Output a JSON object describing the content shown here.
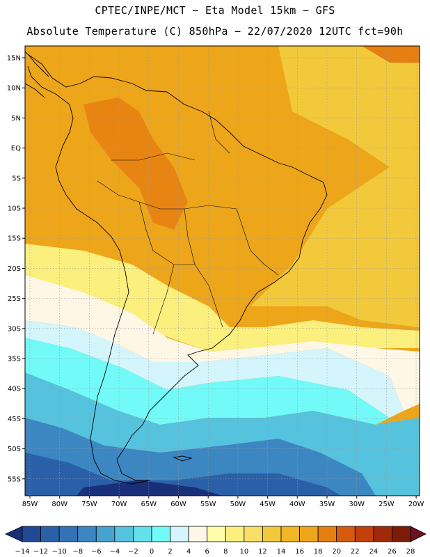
{
  "header": {
    "line1": "CPTEC/INPE/MCT −  Eta Model 15km − GFS",
    "line2": "Absolute Temperature (C) 850hPa − 22/07/2020 12UTC fct=90h"
  },
  "map": {
    "lat_labels": [
      "15N",
      "10N",
      "5N",
      "EQ",
      "5S",
      "10S",
      "15S",
      "20S",
      "25S",
      "30S",
      "35S",
      "40S",
      "45S",
      "50S",
      "55S"
    ],
    "lon_labels": [
      "85W",
      "80W",
      "75W",
      "70W",
      "65W",
      "60W",
      "55W",
      "50W",
      "45W",
      "40W",
      "35W",
      "30W",
      "25W",
      "20W"
    ]
  },
  "colorbar": {
    "labels": [
      "-14",
      "-12",
      "-10",
      "-8",
      "-6",
      "-4",
      "-2",
      "0",
      "2",
      "4",
      "6",
      "8",
      "10",
      "12",
      "14",
      "16",
      "18",
      "20",
      "22",
      "24",
      "26",
      "28"
    ],
    "colors": [
      "#1a2f7a",
      "#1f4a93",
      "#2a60a8",
      "#3272b5",
      "#3c86c2",
      "#46a3cf",
      "#55c3dd",
      "#63e0ea",
      "#72faf8",
      "#d3f5fb",
      "#fff7e6",
      "#fffcaa",
      "#fbef7e",
      "#f7de66",
      "#f3c93c",
      "#f0b624",
      "#eda61a",
      "#e67f12",
      "#d85a0e",
      "#c2400c",
      "#9e2a0a",
      "#7c1c08",
      "#6d1020"
    ]
  },
  "temperature_bands": [
    {
      "range": "20 to 22",
      "color": "#e67f12"
    },
    {
      "range": "18 to 20",
      "color": "#eda61a"
    },
    {
      "range": "16 to 18",
      "color": "#f3c93c"
    },
    {
      "range": "10 to 12",
      "color": "#fbef7e"
    },
    {
      "range": "6 to 8",
      "color": "#fff7e6"
    },
    {
      "range": "4 to 6",
      "color": "#d3f5fb"
    },
    {
      "range": "2 to 4",
      "color": "#72faf8"
    },
    {
      "range": "0 to 2",
      "color": "#55c3dd"
    },
    {
      "range": "-4 to -2",
      "color": "#3c86c2"
    },
    {
      "range": "-8 to -6",
      "color": "#2a60a8"
    },
    {
      "range": "-12 to -10",
      "color": "#1a2f7a"
    }
  ]
}
